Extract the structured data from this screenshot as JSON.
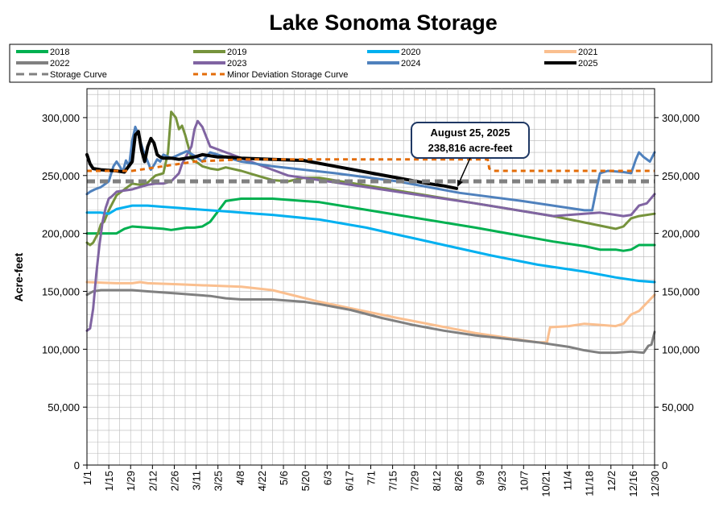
{
  "chart_data": {
    "type": "line",
    "title": "Lake Sonoma Storage",
    "ylabel": "Acre-feet",
    "xlabel": "",
    "ylim": [
      0,
      325000
    ],
    "day_range": [
      1,
      365
    ],
    "y_ticks": [
      0,
      50000,
      100000,
      150000,
      200000,
      250000,
      300000
    ],
    "y_tick_labels": [
      "0",
      "50,000",
      "100,000",
      "150,000",
      "200,000",
      "250,000",
      "300,000"
    ],
    "x_tick_days": [
      1,
      15,
      29,
      43,
      57,
      71,
      85,
      99,
      113,
      127,
      141,
      155,
      169,
      183,
      197,
      211,
      225,
      239,
      253,
      267,
      281,
      295,
      309,
      323,
      337,
      351,
      365
    ],
    "x_tick_labels": [
      "1/1",
      "1/15",
      "1/29",
      "2/12",
      "2/26",
      "3/11",
      "3/25",
      "4/8",
      "4/22",
      "5/6",
      "5/20",
      "6/3",
      "6/17",
      "7/1",
      "7/15",
      "7/29",
      "8/12",
      "8/26",
      "9/9",
      "9/23",
      "10/7",
      "10/21",
      "11/4",
      "11/18",
      "12/2",
      "12/16",
      "12/30"
    ],
    "grid": true,
    "legend_position": "top",
    "annotation": {
      "lines": [
        "August 25, 2025",
        "238,816 acre-feet"
      ],
      "day": 238,
      "value": 238816
    },
    "series": [
      {
        "name": "2018",
        "color": "#00b050",
        "width": 3,
        "dash": "",
        "x": [
          1,
          10,
          15,
          20,
          25,
          30,
          50,
          55,
          60,
          65,
          70,
          75,
          80,
          90,
          100,
          120,
          150,
          200,
          250,
          300,
          320,
          330,
          340,
          345,
          350,
          355,
          365
        ],
        "y": [
          200000,
          200000,
          200000,
          200000,
          204000,
          206000,
          204000,
          203000,
          204000,
          205000,
          205000,
          206000,
          210000,
          228000,
          230000,
          230000,
          227000,
          216000,
          205000,
          193000,
          189000,
          186000,
          186000,
          185000,
          186000,
          190000,
          190000
        ]
      },
      {
        "name": "2019",
        "color": "#76933c",
        "width": 3,
        "dash": "",
        "x": [
          1,
          3,
          5,
          8,
          10,
          12,
          15,
          20,
          30,
          35,
          40,
          45,
          50,
          53,
          55,
          58,
          60,
          62,
          64,
          66,
          68,
          70,
          72,
          75,
          80,
          85,
          90,
          100,
          110,
          120,
          130,
          140,
          150,
          200,
          250,
          300,
          340,
          345,
          350,
          355,
          365
        ],
        "y": [
          192000,
          190000,
          192000,
          200000,
          208000,
          210000,
          220000,
          233000,
          243000,
          242000,
          244000,
          250000,
          252000,
          270000,
          305000,
          300000,
          290000,
          293000,
          285000,
          275000,
          265000,
          262000,
          261000,
          258000,
          256000,
          255000,
          257000,
          254000,
          250000,
          246000,
          245000,
          248000,
          248000,
          237000,
          226000,
          215000,
          204000,
          206000,
          213000,
          215000,
          217000
        ]
      },
      {
        "name": "2020",
        "color": "#00b0f0",
        "width": 3,
        "dash": "",
        "x": [
          1,
          10,
          15,
          20,
          30,
          40,
          50,
          60,
          80,
          90,
          100,
          110,
          120,
          150,
          180,
          200,
          230,
          260,
          290,
          320,
          340,
          355,
          365
        ],
        "y": [
          218000,
          218000,
          217000,
          221000,
          224000,
          224000,
          223000,
          222000,
          220000,
          219000,
          218000,
          217000,
          216000,
          212000,
          205000,
          199000,
          190000,
          181000,
          173000,
          167000,
          162000,
          159000,
          158000
        ]
      },
      {
        "name": "2021",
        "color": "#fabf8f",
        "width": 3,
        "dash": "",
        "x": [
          1,
          20,
          30,
          35,
          40,
          60,
          80,
          100,
          120,
          150,
          200,
          250,
          290,
          296,
          298,
          310,
          320,
          330,
          340,
          345,
          350,
          355,
          365
        ],
        "y": [
          158000,
          157000,
          157000,
          158000,
          157000,
          156000,
          155000,
          154000,
          151000,
          141000,
          127000,
          114000,
          106000,
          106000,
          119000,
          120000,
          122000,
          121000,
          120000,
          122000,
          130000,
          133000,
          147000
        ]
      },
      {
        "name": "2022",
        "color": "#808080",
        "width": 3,
        "dash": "",
        "x": [
          1,
          5,
          10,
          20,
          30,
          40,
          50,
          60,
          70,
          80,
          90,
          100,
          110,
          120,
          130,
          140,
          150,
          170,
          190,
          210,
          230,
          250,
          270,
          290,
          310,
          320,
          330,
          340,
          350,
          358,
          361,
          363,
          365
        ],
        "y": [
          147000,
          150000,
          151000,
          151000,
          151000,
          150000,
          149000,
          148000,
          147000,
          146000,
          144000,
          143000,
          143000,
          143000,
          142000,
          141000,
          139000,
          134000,
          127000,
          121000,
          116000,
          112000,
          109000,
          106000,
          102000,
          99000,
          97000,
          97000,
          98000,
          97000,
          103000,
          104000,
          115000
        ]
      },
      {
        "name": "2023",
        "color": "#8064a2",
        "width": 3,
        "dash": "",
        "x": [
          1,
          3,
          5,
          7,
          9,
          11,
          13,
          15,
          17,
          20,
          25,
          30,
          35,
          40,
          45,
          50,
          55,
          60,
          62,
          64,
          66,
          68,
          70,
          72,
          75,
          80,
          90,
          100,
          110,
          120,
          130,
          140,
          200,
          250,
          300,
          330,
          340,
          345,
          350,
          355,
          360,
          365
        ],
        "y": [
          116000,
          118000,
          135000,
          165000,
          190000,
          210000,
          222000,
          230000,
          232000,
          236000,
          237000,
          238000,
          240000,
          242000,
          243000,
          243000,
          245000,
          252000,
          260000,
          265000,
          270000,
          275000,
          290000,
          297000,
          292000,
          275000,
          270000,
          265000,
          260000,
          255000,
          250000,
          248000,
          236000,
          226000,
          215000,
          218000,
          216000,
          215000,
          216000,
          224000,
          226000,
          234000
        ]
      },
      {
        "name": "2024",
        "color": "#4f81bd",
        "width": 3,
        "dash": "",
        "x": [
          1,
          3,
          6,
          10,
          15,
          18,
          20,
          22,
          24,
          26,
          28,
          30,
          32,
          34,
          36,
          38,
          40,
          42,
          44,
          46,
          48,
          50,
          55,
          60,
          65,
          70,
          75,
          80,
          85,
          90,
          100,
          120,
          160,
          200,
          240,
          280,
          320,
          325,
          328,
          330,
          335,
          345,
          350,
          353,
          355,
          358,
          362,
          365
        ],
        "y": [
          234000,
          236000,
          238000,
          240000,
          245000,
          258000,
          262000,
          258000,
          253000,
          263000,
          258000,
          280000,
          292000,
          285000,
          276000,
          268000,
          262000,
          255000,
          259000,
          264000,
          262000,
          268000,
          265000,
          268000,
          271000,
          267000,
          262000,
          270000,
          268000,
          266000,
          262000,
          258000,
          252000,
          245000,
          235000,
          228000,
          220000,
          220000,
          240000,
          252000,
          254000,
          253000,
          252000,
          264000,
          270000,
          266000,
          262000,
          270000
        ]
      },
      {
        "name": "2025",
        "color": "#000000",
        "width": 4,
        "dash": "",
        "x": [
          1,
          3,
          5,
          10,
          20,
          25,
          30,
          32,
          34,
          36,
          38,
          40,
          42,
          44,
          46,
          48,
          50,
          55,
          60,
          65,
          70,
          75,
          80,
          85,
          90,
          100,
          120,
          140,
          160,
          180,
          200,
          220,
          230,
          238
        ],
        "y": [
          268000,
          260000,
          256000,
          255000,
          254000,
          253000,
          262000,
          285000,
          288000,
          272000,
          262000,
          275000,
          282000,
          278000,
          268000,
          266000,
          265000,
          265000,
          264000,
          265000,
          266000,
          268000,
          267000,
          266000,
          266000,
          265000,
          264000,
          263000,
          258000,
          253000,
          248000,
          243000,
          241000,
          238816
        ]
      },
      {
        "name": "Storage Curve",
        "color": "#808080",
        "width": 5,
        "dash": "10,6",
        "x": [
          1,
          365
        ],
        "y": [
          245000,
          245000
        ]
      },
      {
        "name": "Minor Deviation Storage Curve",
        "color": "#e36c09",
        "width": 3,
        "dash": "6,5",
        "x": [
          1,
          10,
          30,
          70,
          100,
          150,
          200,
          258,
          259,
          262,
          300,
          365
        ],
        "y": [
          254000,
          254000,
          254000,
          262000,
          264000,
          264000,
          264000,
          264000,
          256000,
          254000,
          254000,
          254000
        ]
      }
    ]
  }
}
